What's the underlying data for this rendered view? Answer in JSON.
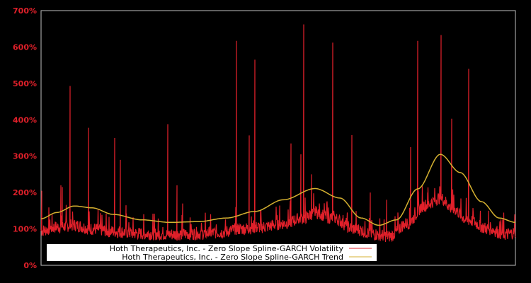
{
  "chart_data": {
    "type": "line",
    "title": "",
    "xlabel": "",
    "ylabel": "",
    "ylim": [
      0,
      700
    ],
    "yticks": [
      "0%",
      "100%",
      "200%",
      "300%",
      "400%",
      "500%",
      "600%",
      "700%"
    ],
    "grid": false,
    "legend_position": "bottom-left inside",
    "colors": {
      "background": "#000000",
      "axis": "#c0c0c0",
      "tick_label": "#e0202a",
      "volatility": "#e0202a",
      "trend": "#d4b030"
    },
    "series": [
      {
        "name": "Hoth Therapeutics, Inc. - Zero Slope Spline-GARCH Volatility",
        "baseline": [
          [
            58,
            90
          ],
          [
            80,
            100
          ],
          [
            105,
            105
          ],
          [
            130,
            95
          ],
          [
            160,
            88
          ],
          [
            200,
            82
          ],
          [
            240,
            80
          ],
          [
            280,
            82
          ],
          [
            310,
            85
          ],
          [
            340,
            95
          ],
          [
            370,
            100
          ],
          [
            400,
            110
          ],
          [
            430,
            125
          ],
          [
            445,
            140
          ],
          [
            470,
            125
          ],
          [
            500,
            95
          ],
          [
            530,
            80
          ],
          [
            550,
            75
          ],
          [
            575,
            110
          ],
          [
            600,
            160
          ],
          [
            622,
            180
          ],
          [
            640,
            150
          ],
          [
            660,
            120
          ],
          [
            690,
            95
          ],
          [
            715,
            80
          ],
          [
            728,
            85
          ]
        ],
        "spikes": [
          [
            59,
            205
          ],
          [
            86,
            220
          ],
          [
            88,
            215
          ],
          [
            99,
            493
          ],
          [
            125,
            378
          ],
          [
            162,
            350
          ],
          [
            170,
            290
          ],
          [
            178,
            165
          ],
          [
            237,
            388
          ],
          [
            250,
            220
          ],
          [
            258,
            170
          ],
          [
            334,
            617
          ],
          [
            352,
            357
          ],
          [
            360,
            565
          ],
          [
            411,
            335
          ],
          [
            425,
            305
          ],
          [
            429,
            662
          ],
          [
            440,
            250
          ],
          [
            470,
            612
          ],
          [
            497,
            358
          ],
          [
            523,
            200
          ],
          [
            546,
            180
          ],
          [
            580,
            325
          ],
          [
            590,
            617
          ],
          [
            604,
            200
          ],
          [
            623,
            633
          ],
          [
            638,
            403
          ],
          [
            662,
            540
          ],
          [
            690,
            150
          ],
          [
            727,
            140
          ]
        ]
      },
      {
        "name": "Hoth Therapeutics, Inc. - Zero Slope Spline-GARCH Trend",
        "points": [
          [
            58,
            128
          ],
          [
            80,
            145
          ],
          [
            105,
            163
          ],
          [
            130,
            158
          ],
          [
            160,
            140
          ],
          [
            200,
            125
          ],
          [
            240,
            118
          ],
          [
            280,
            120
          ],
          [
            320,
            130
          ],
          [
            360,
            148
          ],
          [
            400,
            180
          ],
          [
            445,
            211
          ],
          [
            480,
            185
          ],
          [
            510,
            130
          ],
          [
            535,
            110
          ],
          [
            560,
            125
          ],
          [
            590,
            210
          ],
          [
            622,
            305
          ],
          [
            650,
            255
          ],
          [
            680,
            175
          ],
          [
            705,
            130
          ],
          [
            728,
            118
          ]
        ]
      }
    ]
  },
  "legend": {
    "items": [
      {
        "label": "Hoth Therapeutics, Inc. - Zero Slope Spline-GARCH Volatility",
        "color": "#e0202a"
      },
      {
        "label": "Hoth Therapeutics, Inc. - Zero Slope Spline-GARCH Trend",
        "color": "#d4b030"
      }
    ]
  }
}
